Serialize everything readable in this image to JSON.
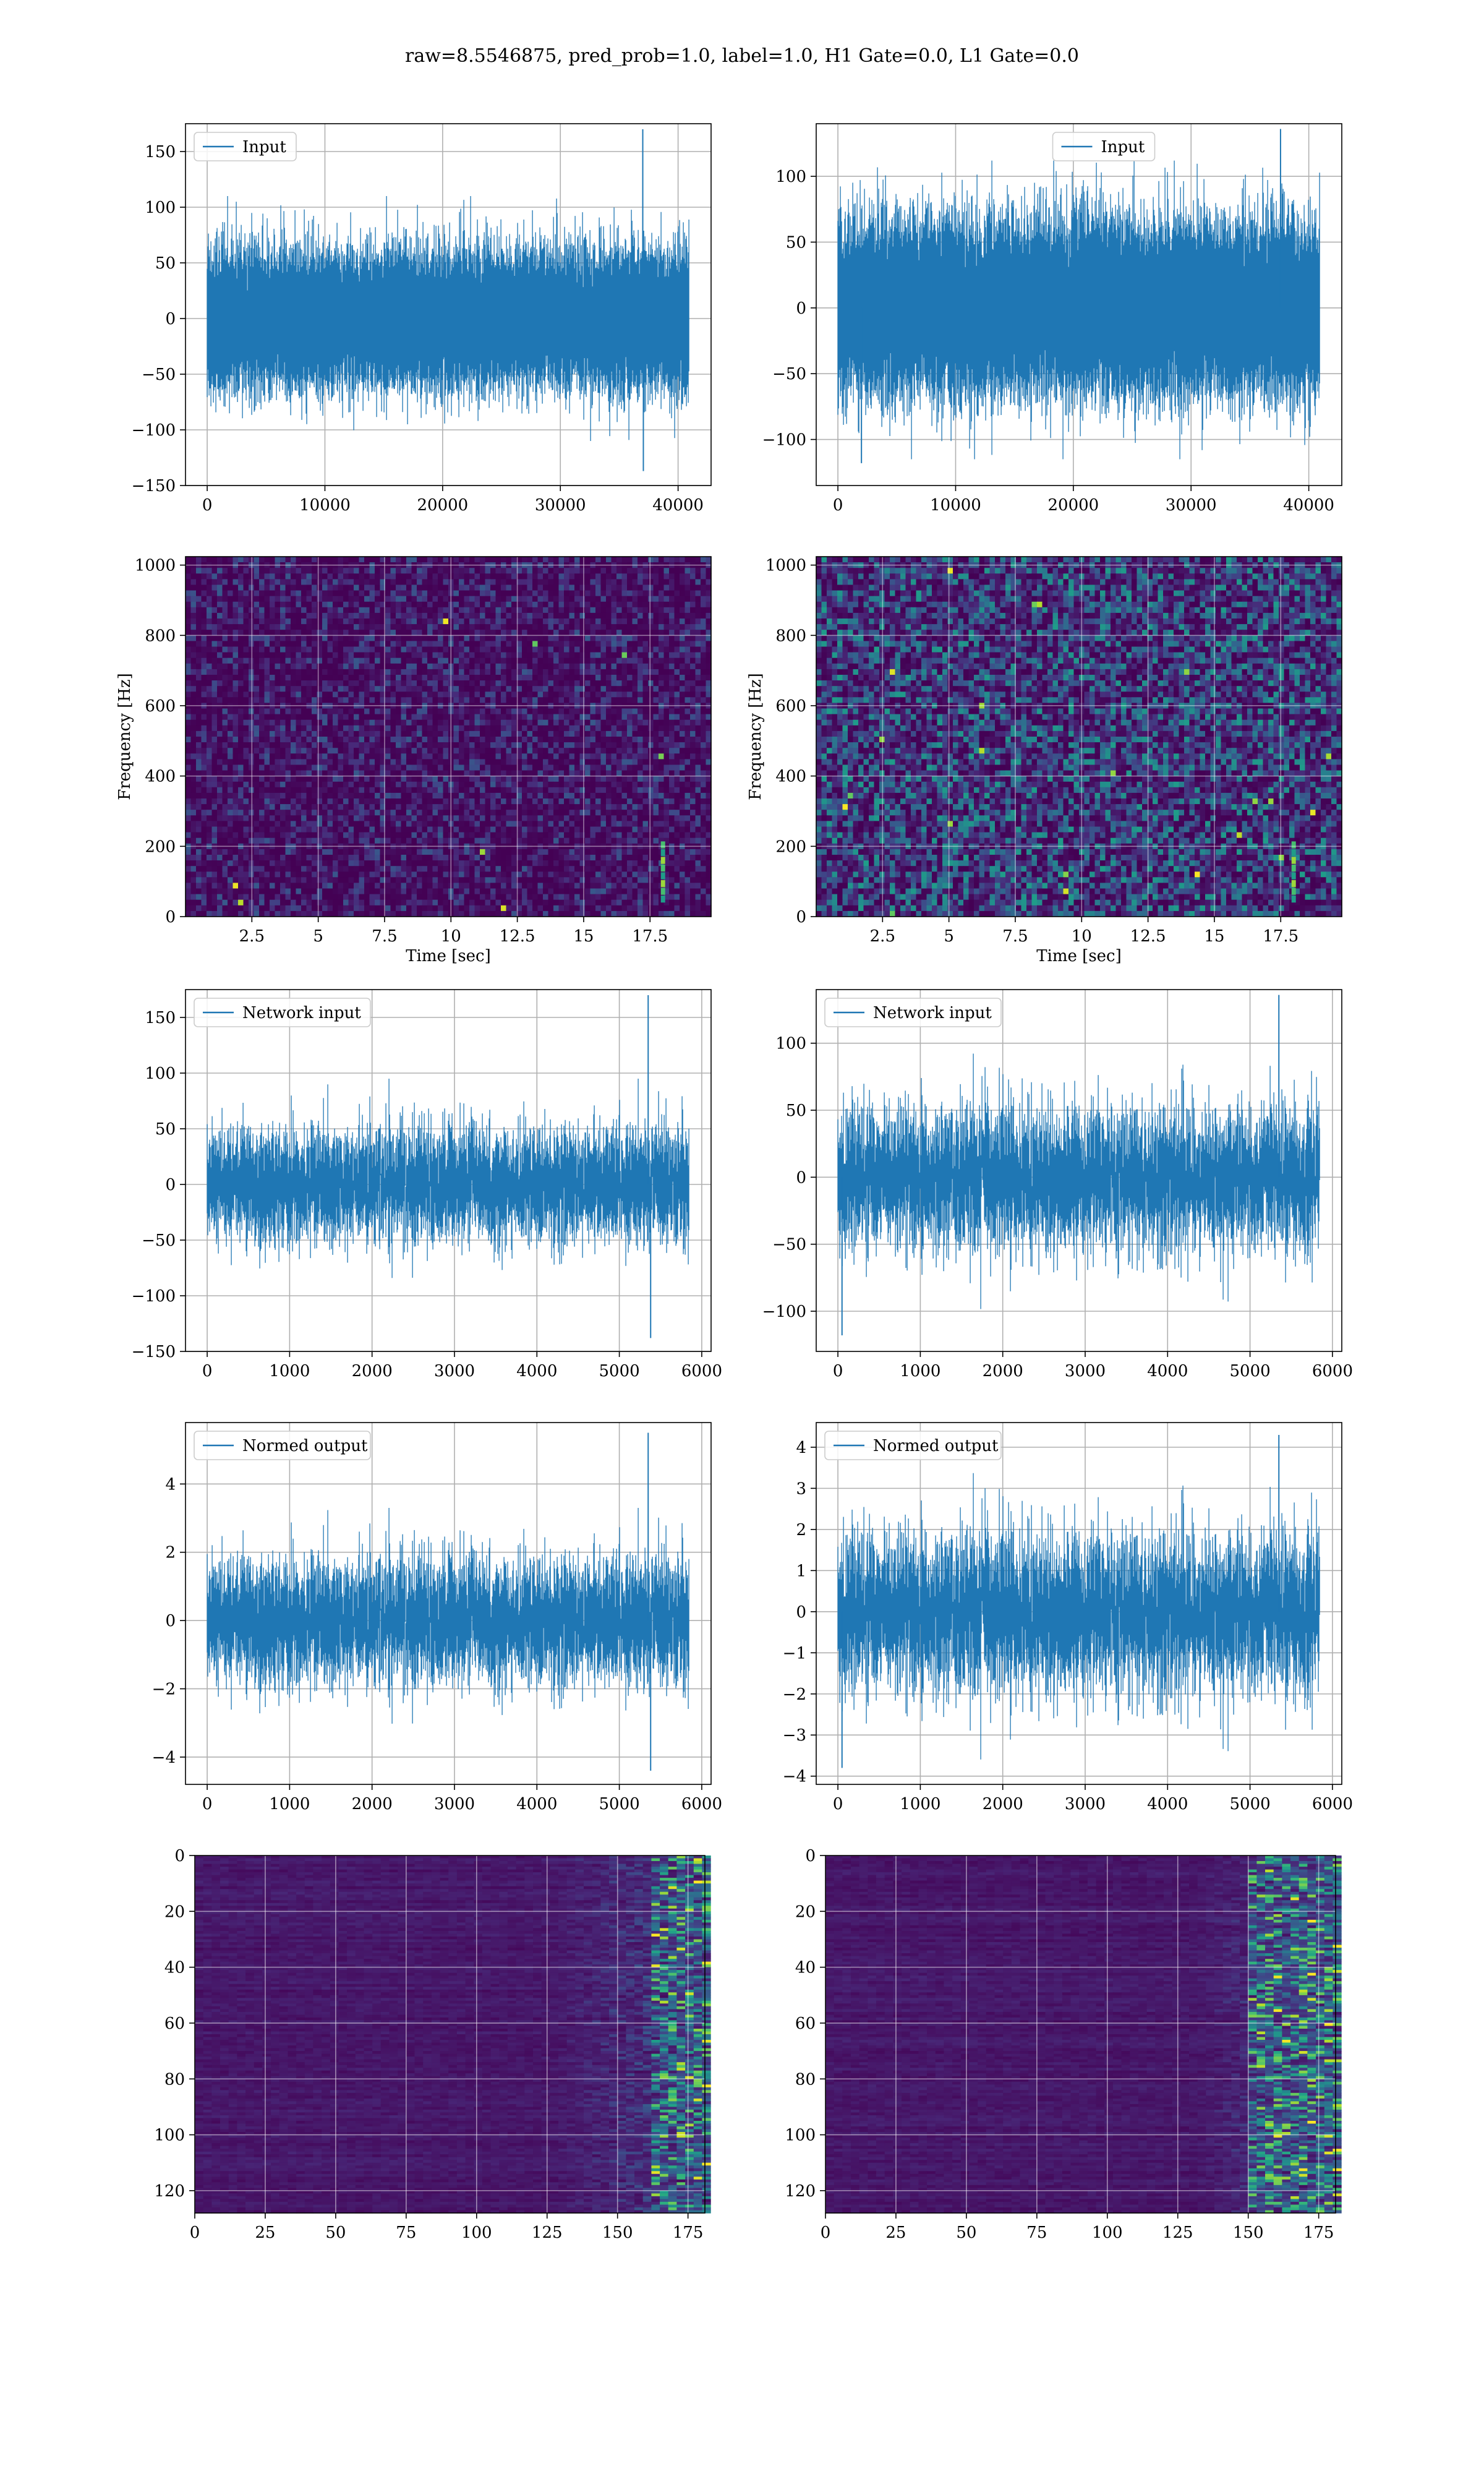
{
  "figure": {
    "title": "raw=8.5546875, pred_prob=1.0, label=1.0, H1 Gate=0.0, L1 Gate=0.0",
    "background": "#ffffff",
    "line_color": "#1f77b4",
    "grid_color": "#b0b0b0"
  },
  "chart_data": [
    {
      "id": "input-h1",
      "type": "line",
      "legend": "Input",
      "x_range": [
        0,
        40960
      ],
      "ylim": [
        -150,
        175
      ],
      "x_ticks": [
        0,
        10000,
        20000,
        30000,
        40000
      ],
      "y_ticks": [
        -150,
        -100,
        -50,
        0,
        50,
        100,
        150
      ],
      "signal": {
        "n_points": 40960,
        "std": 28,
        "peak_max": 110,
        "peak_min": -110,
        "spikes": [
          {
            "x": 37000,
            "y": 170
          },
          {
            "x": 37050,
            "y": -137
          }
        ],
        "seed": 11
      }
    },
    {
      "id": "input-l1",
      "type": "line",
      "legend": "Input",
      "x_range": [
        0,
        40960
      ],
      "ylim": [
        -135,
        140
      ],
      "x_ticks": [
        0,
        10000,
        20000,
        30000,
        40000
      ],
      "y_ticks": [
        -100,
        -50,
        0,
        50,
        100
      ],
      "signal": {
        "n_points": 40960,
        "std": 30,
        "peak_max": 112,
        "peak_min": -115,
        "spikes": [
          {
            "x": 37600,
            "y": 136
          },
          {
            "x": 2000,
            "y": -118
          }
        ],
        "seed": 23
      }
    },
    {
      "id": "spec-h1",
      "type": "heatmap",
      "xlabel": "Time [sec]",
      "ylabel": "Frequency [Hz]",
      "x_range": [
        0,
        19.8
      ],
      "ylim": [
        0,
        1024
      ],
      "x_ticks": [
        2.5,
        5.0,
        7.5,
        10.0,
        12.5,
        15.0,
        17.5
      ],
      "y_ticks": [
        0,
        200,
        400,
        600,
        800,
        1000
      ],
      "intensity": "low",
      "chirp_time": 18.0,
      "seed": 5
    },
    {
      "id": "spec-l1",
      "type": "heatmap",
      "xlabel": "Time [sec]",
      "ylabel": "Frequency [Hz]",
      "x_range": [
        0,
        19.8
      ],
      "ylim": [
        0,
        1024
      ],
      "x_ticks": [
        2.5,
        5.0,
        7.5,
        10.0,
        12.5,
        15.0,
        17.5
      ],
      "y_ticks": [
        0,
        200,
        400,
        600,
        800,
        1000
      ],
      "intensity": "high",
      "chirp_time": 18.0,
      "seed": 9
    },
    {
      "id": "net-h1",
      "type": "line",
      "legend": "Network input",
      "x_range": [
        0,
        5850
      ],
      "ylim": [
        -150,
        175
      ],
      "x_ticks": [
        0,
        1000,
        2000,
        3000,
        4000,
        5000,
        6000
      ],
      "y_ticks": [
        -150,
        -100,
        -50,
        0,
        50,
        100,
        150
      ],
      "signal": {
        "n_points": 5850,
        "std": 25,
        "peak_max": 95,
        "peak_min": -100,
        "spikes": [
          {
            "x": 5350,
            "y": 170
          },
          {
            "x": 5380,
            "y": -138
          }
        ],
        "seed": 31
      }
    },
    {
      "id": "net-l1",
      "type": "line",
      "legend": "Network input",
      "x_range": [
        0,
        5850
      ],
      "ylim": [
        -130,
        140
      ],
      "x_ticks": [
        0,
        1000,
        2000,
        3000,
        4000,
        5000,
        6000
      ],
      "y_ticks": [
        -100,
        -50,
        0,
        50,
        100
      ],
      "signal": {
        "n_points": 5850,
        "std": 26,
        "peak_max": 122,
        "peak_min": -120,
        "spikes": [
          {
            "x": 5350,
            "y": 136
          },
          {
            "x": 50,
            "y": -118
          }
        ],
        "seed": 41
      }
    },
    {
      "id": "norm-h1",
      "type": "line",
      "legend": "Normed output",
      "x_range": [
        0,
        5850
      ],
      "ylim": [
        -4.8,
        5.8
      ],
      "x_ticks": [
        0,
        1000,
        2000,
        3000,
        4000,
        5000,
        6000
      ],
      "y_ticks": [
        -4,
        -2,
        0,
        2,
        4
      ],
      "signal": {
        "n_points": 5850,
        "std": 0.9,
        "peak_max": 3.3,
        "peak_min": -3.3,
        "spikes": [
          {
            "x": 5350,
            "y": 5.5
          },
          {
            "x": 5380,
            "y": -4.4
          }
        ],
        "seed": 31
      }
    },
    {
      "id": "norm-l1",
      "type": "line",
      "legend": "Normed output",
      "x_range": [
        0,
        5850
      ],
      "ylim": [
        -4.2,
        4.6
      ],
      "x_ticks": [
        0,
        1000,
        2000,
        3000,
        4000,
        5000,
        6000
      ],
      "y_ticks": [
        -4,
        -3,
        -2,
        -1,
        0,
        1,
        2,
        3,
        4
      ],
      "signal": {
        "n_points": 5850,
        "std": 0.95,
        "peak_max": 4.2,
        "peak_min": -3.8,
        "spikes": [
          {
            "x": 5350,
            "y": 4.3
          },
          {
            "x": 50,
            "y": -3.8
          }
        ],
        "seed": 41
      }
    },
    {
      "id": "feat-h1",
      "type": "heatmap",
      "y_inverted": true,
      "x_range": [
        0,
        181
      ],
      "ylim": [
        0,
        128
      ],
      "x_ticks": [
        0,
        25,
        50,
        75,
        100,
        125,
        150,
        175
      ],
      "y_ticks": [
        0,
        20,
        40,
        60,
        80,
        100,
        120
      ],
      "rows": 128,
      "cols": 181,
      "active_from": 125,
      "hot_from": 160,
      "seed": 3
    },
    {
      "id": "feat-l1",
      "type": "heatmap",
      "y_inverted": true,
      "x_range": [
        0,
        181
      ],
      "ylim": [
        0,
        128
      ],
      "x_ticks": [
        0,
        25,
        50,
        75,
        100,
        125,
        150,
        175
      ],
      "y_ticks": [
        0,
        20,
        40,
        60,
        80,
        100,
        120
      ],
      "rows": 128,
      "cols": 181,
      "active_from": 130,
      "hot_from": 150,
      "seed": 7
    }
  ]
}
